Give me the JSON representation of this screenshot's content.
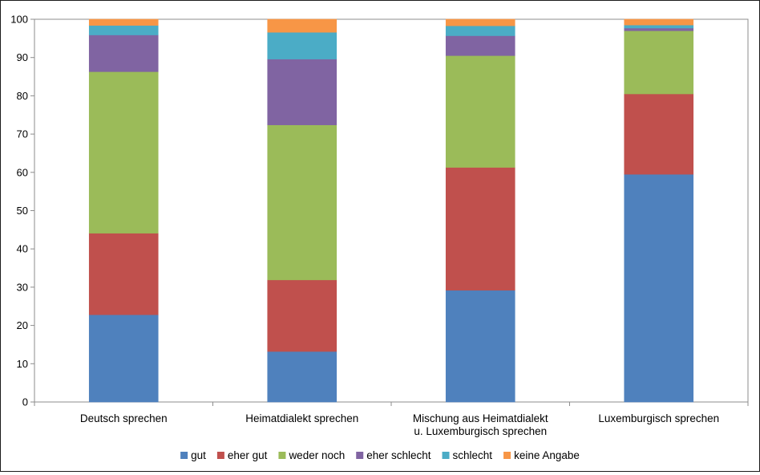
{
  "chart_data": {
    "type": "bar",
    "stacked": true,
    "categories": [
      [
        "Deutsch sprechen"
      ],
      [
        "Heimatdialekt sprechen"
      ],
      [
        "Mischung aus Heimatdialekt",
        "u. Luxemburgisch sprechen"
      ],
      [
        "Luxemburgisch sprechen"
      ]
    ],
    "series": [
      {
        "name": "gut",
        "color": "#4F81BD",
        "values": [
          22.8,
          13.2,
          29.2,
          59.5
        ]
      },
      {
        "name": "eher gut",
        "color": "#C0504D",
        "values": [
          21.3,
          18.7,
          32.1,
          21.0
        ]
      },
      {
        "name": "weder noch",
        "color": "#9BBB59",
        "values": [
          42.2,
          40.5,
          29.2,
          16.5
        ]
      },
      {
        "name": "eher schlecht",
        "color": "#8064A2",
        "values": [
          9.6,
          17.2,
          5.2,
          0.7
        ]
      },
      {
        "name": "schlecht",
        "color": "#4BACC6",
        "values": [
          2.5,
          7.0,
          2.6,
          0.8
        ]
      },
      {
        "name": "keine Angabe",
        "color": "#F79646",
        "values": [
          1.6,
          3.4,
          1.7,
          1.5
        ]
      }
    ],
    "ylim": [
      0,
      100
    ],
    "yticks": [
      "0",
      "10",
      "20",
      "30",
      "40",
      "50",
      "60",
      "70",
      "80",
      "90",
      "100"
    ],
    "grid": false,
    "legend_position": "bottom"
  }
}
